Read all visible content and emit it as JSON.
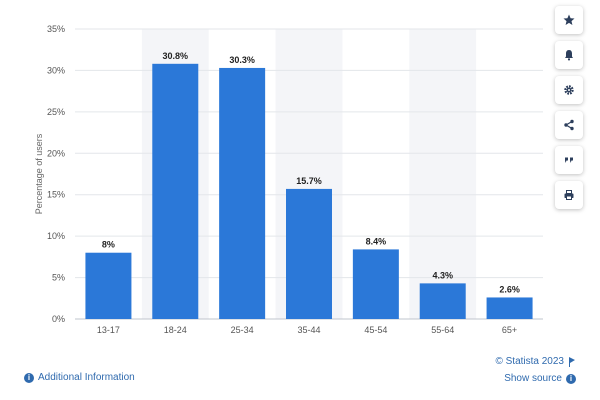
{
  "chart_data": {
    "type": "bar",
    "categories": [
      "13-17",
      "18-24",
      "25-34",
      "35-44",
      "45-54",
      "55-64",
      "65+"
    ],
    "values": [
      8,
      30.8,
      30.3,
      15.7,
      8.4,
      4.3,
      2.6
    ],
    "data_labels": [
      "8%",
      "30.8%",
      "30.3%",
      "15.7%",
      "8.4%",
      "4.3%",
      "2.6%"
    ],
    "ylabel": "Percentage of users",
    "ylim": [
      0,
      35
    ],
    "yticks": [
      0,
      5,
      10,
      15,
      20,
      25,
      30,
      35
    ],
    "ytick_labels": [
      "0%",
      "5%",
      "10%",
      "15%",
      "20%",
      "25%",
      "30%",
      "35%"
    ],
    "grid": true,
    "bar_color": "#2b78d8",
    "band_color": "#f4f5f8"
  },
  "toolbar": {
    "icons": [
      "star-icon",
      "bell-icon",
      "gear-icon",
      "share-icon",
      "quote-icon",
      "print-icon"
    ]
  },
  "footer": {
    "additional_info": "Additional Information",
    "credit": "© Statista 2023",
    "show_source": "Show source"
  }
}
